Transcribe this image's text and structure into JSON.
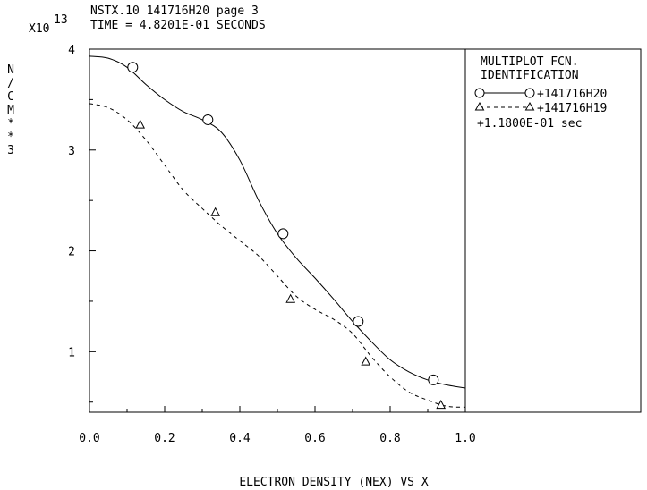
{
  "header": {
    "line1": "NSTX.10 141716H20 page 3",
    "line2": "TIME = 4.8201E-01 SECONDS",
    "exponent_base": "X10",
    "exponent_power": "13"
  },
  "legend": {
    "title_line1": "MULTIPLOT FCN.",
    "title_line2": "IDENTIFICATION",
    "entries": [
      {
        "label": "+141716H20"
      },
      {
        "label": "+141716H19"
      },
      {
        "label": "+1.1800E-01 sec"
      }
    ]
  },
  "chart_data": {
    "type": "line",
    "xlabel": "ELECTRON DENSITY (NEX) VS X",
    "ylabel": "N/CM**3",
    "xlim": [
      0.0,
      1.0
    ],
    "ylim": [
      0.4,
      4.0
    ],
    "xticks": [
      "0.0",
      "0.2",
      "0.4",
      "0.6",
      "0.8",
      "1.0"
    ],
    "yticks": [
      "1",
      "2",
      "3",
      "4"
    ],
    "grid": false,
    "legend_position": "right panel",
    "series": [
      {
        "name": "+141716H20",
        "line_style": "solid",
        "marker": "circle",
        "x": [
          0.0,
          0.05,
          0.1,
          0.15,
          0.2,
          0.25,
          0.3,
          0.35,
          0.4,
          0.45,
          0.5,
          0.55,
          0.6,
          0.65,
          0.7,
          0.75,
          0.8,
          0.85,
          0.9,
          0.95,
          1.0
        ],
        "y": [
          3.93,
          3.91,
          3.82,
          3.65,
          3.5,
          3.38,
          3.3,
          3.18,
          2.9,
          2.5,
          2.17,
          1.93,
          1.73,
          1.52,
          1.3,
          1.1,
          0.92,
          0.8,
          0.72,
          0.67,
          0.64
        ],
        "markers": [
          [
            0.115,
            3.82
          ],
          [
            0.315,
            3.3
          ],
          [
            0.515,
            2.17
          ],
          [
            0.715,
            1.3
          ],
          [
            0.915,
            0.72
          ]
        ]
      },
      {
        "name": "+141716H19",
        "line_style": "dashed",
        "marker": "triangle",
        "x": [
          0.0,
          0.05,
          0.1,
          0.15,
          0.2,
          0.25,
          0.3,
          0.35,
          0.4,
          0.45,
          0.5,
          0.55,
          0.6,
          0.65,
          0.7,
          0.75,
          0.8,
          0.85,
          0.9,
          0.95,
          1.0
        ],
        "y": [
          3.46,
          3.42,
          3.3,
          3.1,
          2.85,
          2.6,
          2.42,
          2.25,
          2.1,
          1.95,
          1.75,
          1.55,
          1.42,
          1.32,
          1.18,
          0.95,
          0.75,
          0.6,
          0.52,
          0.46,
          0.45
        ],
        "markers": [
          [
            0.135,
            3.25
          ],
          [
            0.335,
            2.38
          ],
          [
            0.535,
            1.52
          ],
          [
            0.735,
            0.9
          ],
          [
            0.935,
            0.47
          ]
        ]
      }
    ]
  }
}
